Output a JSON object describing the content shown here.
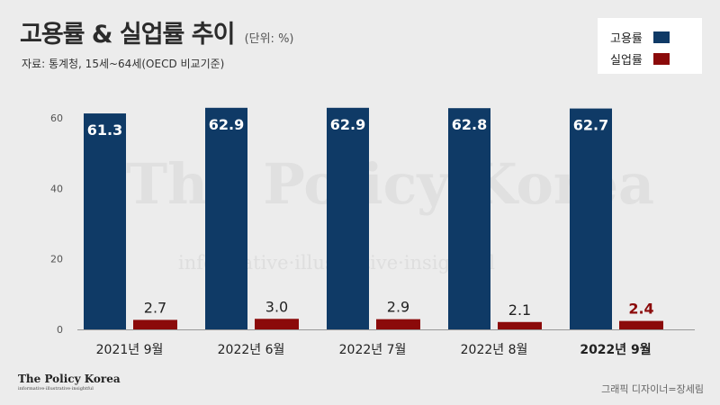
{
  "header": {
    "title": "고용률 & 실업률 추이",
    "unit": "(단위: %)",
    "source": "자료: 통계청, 15세~64세(OECD 비교기준)"
  },
  "watermark": {
    "main": "The Policy Korea",
    "sub": "informative·illustrative·insightful"
  },
  "brand": {
    "name": "The Policy Korea",
    "tagline": "informative·illustrative·insightful"
  },
  "credit": "그래픽 디자이너=장세림",
  "colors": {
    "employment": "#0f3a66",
    "unemployment": "#8b0a0a",
    "background": "#ececec"
  },
  "chart_data": {
    "type": "bar",
    "categories": [
      "2021년 9월",
      "2022년 6월",
      "2022년 7월",
      "2022년 8월",
      "2022년 9월"
    ],
    "series": [
      {
        "name": "고용률",
        "values": [
          61.3,
          62.9,
          62.9,
          62.8,
          62.7
        ],
        "labels": [
          "61.3",
          "62.9",
          "62.9",
          "62.8",
          "62.7"
        ]
      },
      {
        "name": "실업률",
        "values": [
          2.7,
          3.0,
          2.9,
          2.1,
          2.4
        ],
        "labels": [
          "2.7",
          "3.0",
          "2.9",
          "2.1",
          "2.4"
        ]
      }
    ],
    "yticks": [
      "0",
      "20",
      "40",
      "60"
    ],
    "ylim": [
      0,
      70
    ],
    "highlight_category": "2022년 9월",
    "grid": false,
    "legend_position": "top-right"
  }
}
